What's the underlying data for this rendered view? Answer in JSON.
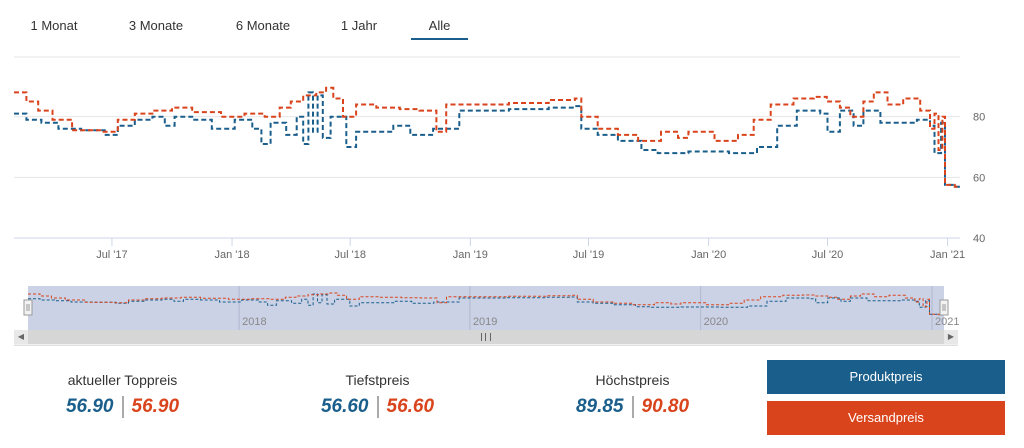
{
  "range_tabs": [
    {
      "label": "1 Monat",
      "active": false
    },
    {
      "label": "3 Monate",
      "active": false
    },
    {
      "label": "6 Monate",
      "active": false
    },
    {
      "label": "1 Jahr",
      "active": false
    },
    {
      "label": "Alle",
      "active": true
    }
  ],
  "chart_data": {
    "type": "line",
    "x_start": "2017-02-01",
    "x_end": "2021-01-20",
    "x_tick_labels": [
      "Jul '17",
      "Jan '18",
      "Jul '18",
      "Jan '19",
      "Jul '19",
      "Jan '20",
      "Jul '20",
      "Jan '21"
    ],
    "x_tick_dates": [
      "2017-07-01",
      "2018-01-01",
      "2018-07-01",
      "2019-01-01",
      "2019-07-01",
      "2020-01-01",
      "2020-07-01",
      "2021-01-01"
    ],
    "y_ticks": [
      40,
      60,
      80
    ],
    "ylim": [
      40,
      100
    ],
    "grid": true,
    "navigator_year_labels": [
      "2018",
      "2019",
      "2020",
      "2021"
    ],
    "navigator_year_dates": [
      "2018-01-01",
      "2019-01-01",
      "2020-01-01",
      "2021-01-01"
    ],
    "series": [
      {
        "name": "Produktpreis",
        "color": "#1a5f8c",
        "points": [
          [
            "2017-02-01",
            81
          ],
          [
            "2017-02-20",
            79
          ],
          [
            "2017-03-15",
            78
          ],
          [
            "2017-04-10",
            76
          ],
          [
            "2017-05-15",
            75.5
          ],
          [
            "2017-06-20",
            74
          ],
          [
            "2017-07-10",
            77
          ],
          [
            "2017-08-05",
            79
          ],
          [
            "2017-09-01",
            80
          ],
          [
            "2017-09-20",
            77
          ],
          [
            "2017-10-05",
            80
          ],
          [
            "2017-11-01",
            79
          ],
          [
            "2017-12-01",
            76
          ],
          [
            "2018-01-05",
            79
          ],
          [
            "2018-02-01",
            76
          ],
          [
            "2018-02-15",
            71
          ],
          [
            "2018-03-01",
            78
          ],
          [
            "2018-03-25",
            74
          ],
          [
            "2018-04-10",
            80
          ],
          [
            "2018-04-20",
            71
          ],
          [
            "2018-04-28",
            88
          ],
          [
            "2018-05-05",
            75
          ],
          [
            "2018-05-12",
            87
          ],
          [
            "2018-05-20",
            73
          ],
          [
            "2018-06-01",
            80
          ],
          [
            "2018-06-25",
            70
          ],
          [
            "2018-07-10",
            75
          ],
          [
            "2018-08-05",
            75
          ],
          [
            "2018-09-05",
            77
          ],
          [
            "2018-10-01",
            74
          ],
          [
            "2018-11-05",
            76
          ],
          [
            "2018-12-15",
            82
          ],
          [
            "2019-03-01",
            82.5
          ],
          [
            "2019-05-01",
            83
          ],
          [
            "2019-06-10",
            83.5
          ],
          [
            "2019-06-20",
            76
          ],
          [
            "2019-07-15",
            74
          ],
          [
            "2019-08-15",
            72
          ],
          [
            "2019-09-20",
            69
          ],
          [
            "2019-10-15",
            68
          ],
          [
            "2019-12-01",
            68.5
          ],
          [
            "2020-02-01",
            68
          ],
          [
            "2020-03-15",
            70
          ],
          [
            "2020-04-15",
            77
          ],
          [
            "2020-05-15",
            82
          ],
          [
            "2020-06-20",
            81
          ],
          [
            "2020-07-01",
            75
          ],
          [
            "2020-07-20",
            82
          ],
          [
            "2020-08-10",
            77
          ],
          [
            "2020-08-25",
            82
          ],
          [
            "2020-09-20",
            78
          ],
          [
            "2020-10-10",
            78
          ],
          [
            "2020-11-15",
            79
          ],
          [
            "2020-12-05",
            77
          ],
          [
            "2020-12-12",
            68
          ],
          [
            "2020-12-22",
            78
          ],
          [
            "2020-12-28",
            57.5
          ],
          [
            "2021-01-12",
            56.9
          ],
          [
            "2021-01-20",
            56.9
          ]
        ]
      },
      {
        "name": "Versandpreis",
        "color": "#d9441c",
        "points": [
          [
            "2017-02-01",
            88
          ],
          [
            "2017-02-20",
            85
          ],
          [
            "2017-03-10",
            82
          ],
          [
            "2017-04-01",
            79
          ],
          [
            "2017-05-01",
            75.5
          ],
          [
            "2017-06-15",
            75
          ],
          [
            "2017-07-10",
            79
          ],
          [
            "2017-08-05",
            81
          ],
          [
            "2017-09-01",
            82
          ],
          [
            "2017-10-01",
            83
          ],
          [
            "2017-11-01",
            81.5
          ],
          [
            "2017-12-15",
            80
          ],
          [
            "2018-01-20",
            81
          ],
          [
            "2018-02-20",
            80
          ],
          [
            "2018-03-15",
            83
          ],
          [
            "2018-04-01",
            85
          ],
          [
            "2018-04-20",
            87
          ],
          [
            "2018-05-10",
            88
          ],
          [
            "2018-05-25",
            89.5
          ],
          [
            "2018-06-05",
            86
          ],
          [
            "2018-06-20",
            80
          ],
          [
            "2018-07-10",
            84
          ],
          [
            "2018-08-10",
            83
          ],
          [
            "2018-09-15",
            82.5
          ],
          [
            "2018-10-15",
            82
          ],
          [
            "2018-11-10",
            75
          ],
          [
            "2018-11-25",
            84
          ],
          [
            "2019-01-15",
            84
          ],
          [
            "2019-03-01",
            84.5
          ],
          [
            "2019-05-01",
            85.5
          ],
          [
            "2019-06-10",
            86
          ],
          [
            "2019-06-20",
            80
          ],
          [
            "2019-07-15",
            76
          ],
          [
            "2019-08-15",
            74
          ],
          [
            "2019-09-15",
            72
          ],
          [
            "2019-10-20",
            75
          ],
          [
            "2019-11-15",
            73
          ],
          [
            "2019-12-01",
            75
          ],
          [
            "2020-01-10",
            72
          ],
          [
            "2020-02-15",
            74
          ],
          [
            "2020-03-10",
            79
          ],
          [
            "2020-04-05",
            84
          ],
          [
            "2020-05-10",
            86
          ],
          [
            "2020-06-10",
            86.5
          ],
          [
            "2020-06-30",
            85
          ],
          [
            "2020-07-20",
            83
          ],
          [
            "2020-08-05",
            80
          ],
          [
            "2020-08-25",
            85
          ],
          [
            "2020-09-10",
            88
          ],
          [
            "2020-10-01",
            84
          ],
          [
            "2020-10-25",
            86
          ],
          [
            "2020-11-20",
            82
          ],
          [
            "2020-12-05",
            76
          ],
          [
            "2020-12-12",
            81
          ],
          [
            "2020-12-18",
            69
          ],
          [
            "2020-12-24",
            80
          ],
          [
            "2020-12-28",
            57.5
          ],
          [
            "2021-01-12",
            56.9
          ],
          [
            "2021-01-20",
            56.9
          ]
        ]
      }
    ]
  },
  "stats": [
    {
      "label": "aktueller Toppreis",
      "prod": "56.90",
      "ship": "56.90"
    },
    {
      "label": "Tiefstpreis",
      "prod": "56.60",
      "ship": "56.60"
    },
    {
      "label": "Höchstpreis",
      "prod": "89.85",
      "ship": "90.80"
    }
  ],
  "legend": {
    "produkt": {
      "label": "Produktpreis",
      "color": "#1a5f8c"
    },
    "versand": {
      "label": "Versandpreis",
      "color": "#d9441c"
    }
  },
  "icons": {
    "scroll_left": "chevron-left-icon",
    "scroll_right": "chevron-right-icon",
    "thumb_grip": "grip-icon"
  }
}
